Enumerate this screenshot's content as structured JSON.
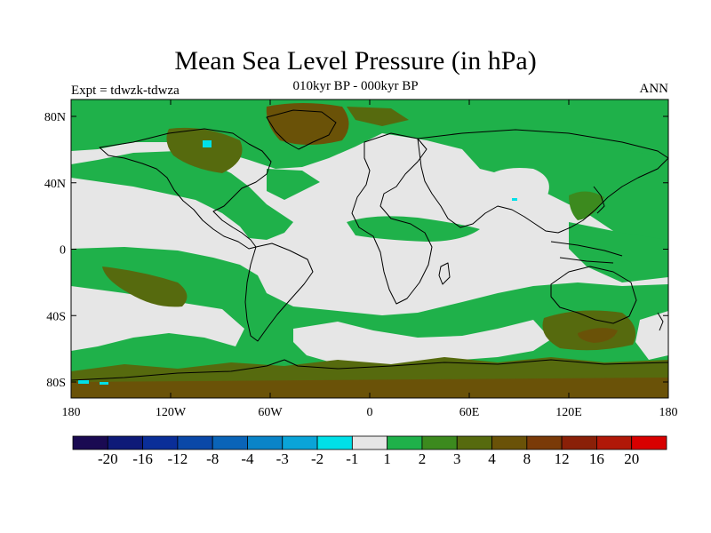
{
  "title": "Mean Sea Level Pressure (in hPa)",
  "subtitle": "010kyr BP - 000kyr BP",
  "left_label": "Expt = tdwzk-tdwza",
  "right_label": "ANN",
  "map": {
    "lat_ticks": [
      "80N",
      "40N",
      "0",
      "40S",
      "80S"
    ],
    "lon_ticks": [
      "180",
      "120W",
      "60W",
      "0",
      "60E",
      "120E",
      "180"
    ],
    "background_color": "#e6e6e6",
    "coast_color": "#000000"
  },
  "colorbar": {
    "colors": [
      "#1a0a52",
      "#0e1a78",
      "#0a2e98",
      "#0a48a8",
      "#0a64b8",
      "#0a84c8",
      "#0aa4d8",
      "#00e0e8",
      "#e6e6e6",
      "#1fb14a",
      "#3c8a1e",
      "#566a0e",
      "#6a5208",
      "#7a3a08",
      "#8a2008",
      "#b01808",
      "#d80000"
    ],
    "labels": [
      "-20",
      "-16",
      "-12",
      "-8",
      "-4",
      "-3",
      "-2",
      "-1",
      "1",
      "2",
      "3",
      "4",
      "8",
      "12",
      "16",
      "20"
    ]
  }
}
